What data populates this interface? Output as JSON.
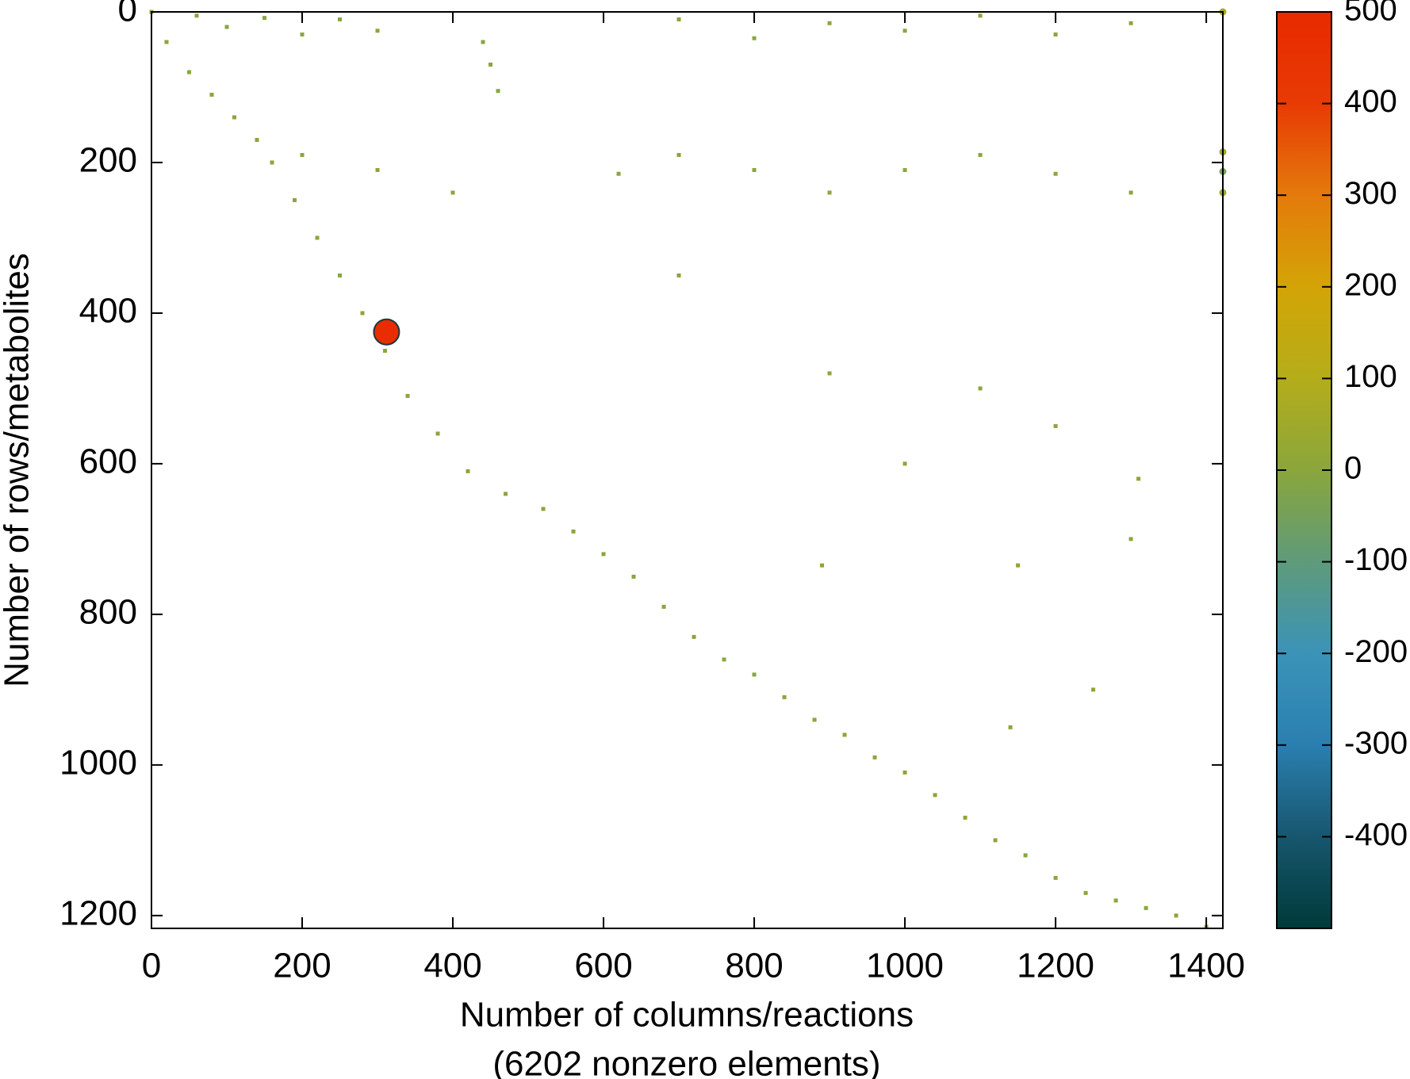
{
  "chart_data": {
    "type": "spy",
    "xlabel": [
      "Number of columns/reactions",
      "(6202 nonzero elements)"
    ],
    "ylabel": "Number of rows/metabolites",
    "xlim": [
      0,
      1422
    ],
    "ylim": [
      0,
      1217
    ],
    "y_inverted": true,
    "xticks": [
      0,
      200,
      400,
      600,
      800,
      1000,
      1200,
      1400
    ],
    "yticks": [
      0,
      200,
      400,
      600,
      800,
      1000,
      1200
    ],
    "clim": [
      -500,
      500
    ],
    "cticks": [
      -400,
      -300,
      -200,
      -100,
      0,
      100,
      200,
      300,
      400,
      500
    ],
    "colormap": [
      "#003a3a",
      "#17566e",
      "#2a7fb0",
      "#3b93b8",
      "#5f9a7a",
      "#8aa63c",
      "#b4ad1a",
      "#d4a406",
      "#e47a0c",
      "#e83a04",
      "#e82a00"
    ],
    "points": {
      "x": [
        0,
        20,
        50,
        80,
        110,
        140,
        160,
        190,
        220,
        250,
        280,
        310,
        340,
        380,
        420,
        470,
        520,
        560,
        600,
        640,
        680,
        720,
        760,
        800,
        840,
        880,
        920,
        960,
        1000,
        1040,
        1080,
        1120,
        1160,
        1200,
        1240,
        1280,
        1320,
        1360,
        1400,
        60,
        100,
        150,
        200,
        250,
        300,
        700,
        800,
        900,
        1000,
        1100,
        1200,
        1300,
        200,
        300,
        400,
        620,
        700,
        800,
        900,
        1000,
        1100,
        1200,
        1300,
        700,
        900,
        1100,
        1200,
        890,
        1150,
        1000,
        1300,
        1250,
        1140,
        1310,
        440,
        450,
        460
      ],
      "y": [
        0,
        40,
        80,
        110,
        140,
        170,
        200,
        250,
        300,
        350,
        400,
        450,
        510,
        560,
        610,
        640,
        660,
        690,
        720,
        750,
        790,
        830,
        860,
        880,
        910,
        940,
        960,
        990,
        1010,
        1040,
        1070,
        1100,
        1120,
        1150,
        1170,
        1180,
        1190,
        1200,
        1215,
        5,
        20,
        8,
        30,
        10,
        25,
        10,
        35,
        15,
        25,
        5,
        30,
        15,
        190,
        210,
        240,
        215,
        190,
        210,
        240,
        210,
        190,
        215,
        240,
        350,
        480,
        500,
        550,
        735,
        735,
        600,
        700,
        900,
        950,
        620,
        40,
        70,
        105
      ],
      "values": [
        1,
        -1,
        1,
        -1,
        1,
        -1,
        1,
        -1,
        1,
        -1,
        1,
        -1,
        1,
        -1,
        1,
        -1,
        1,
        -1,
        1,
        -1,
        1,
        -1,
        1,
        -1,
        1,
        -1,
        1,
        -1,
        1,
        -1,
        1,
        -1,
        1,
        -1,
        1,
        -1,
        1,
        -1,
        1,
        1,
        -1,
        1,
        -1,
        1,
        -1,
        1,
        -1,
        1,
        -1,
        1,
        -1,
        1,
        1,
        -1,
        1,
        -1,
        1,
        -1,
        1,
        -1,
        1,
        -1,
        1,
        1,
        -1,
        1,
        -1,
        1,
        -1,
        1,
        -1,
        1,
        -1,
        1,
        1,
        -1,
        1
      ]
    },
    "markers": {
      "x": [
        312,
        1422,
        1422,
        1422,
        1422
      ],
      "y": [
        425,
        0,
        186,
        212,
        240
      ],
      "values": [
        480,
        60,
        40,
        -40,
        40
      ]
    }
  }
}
